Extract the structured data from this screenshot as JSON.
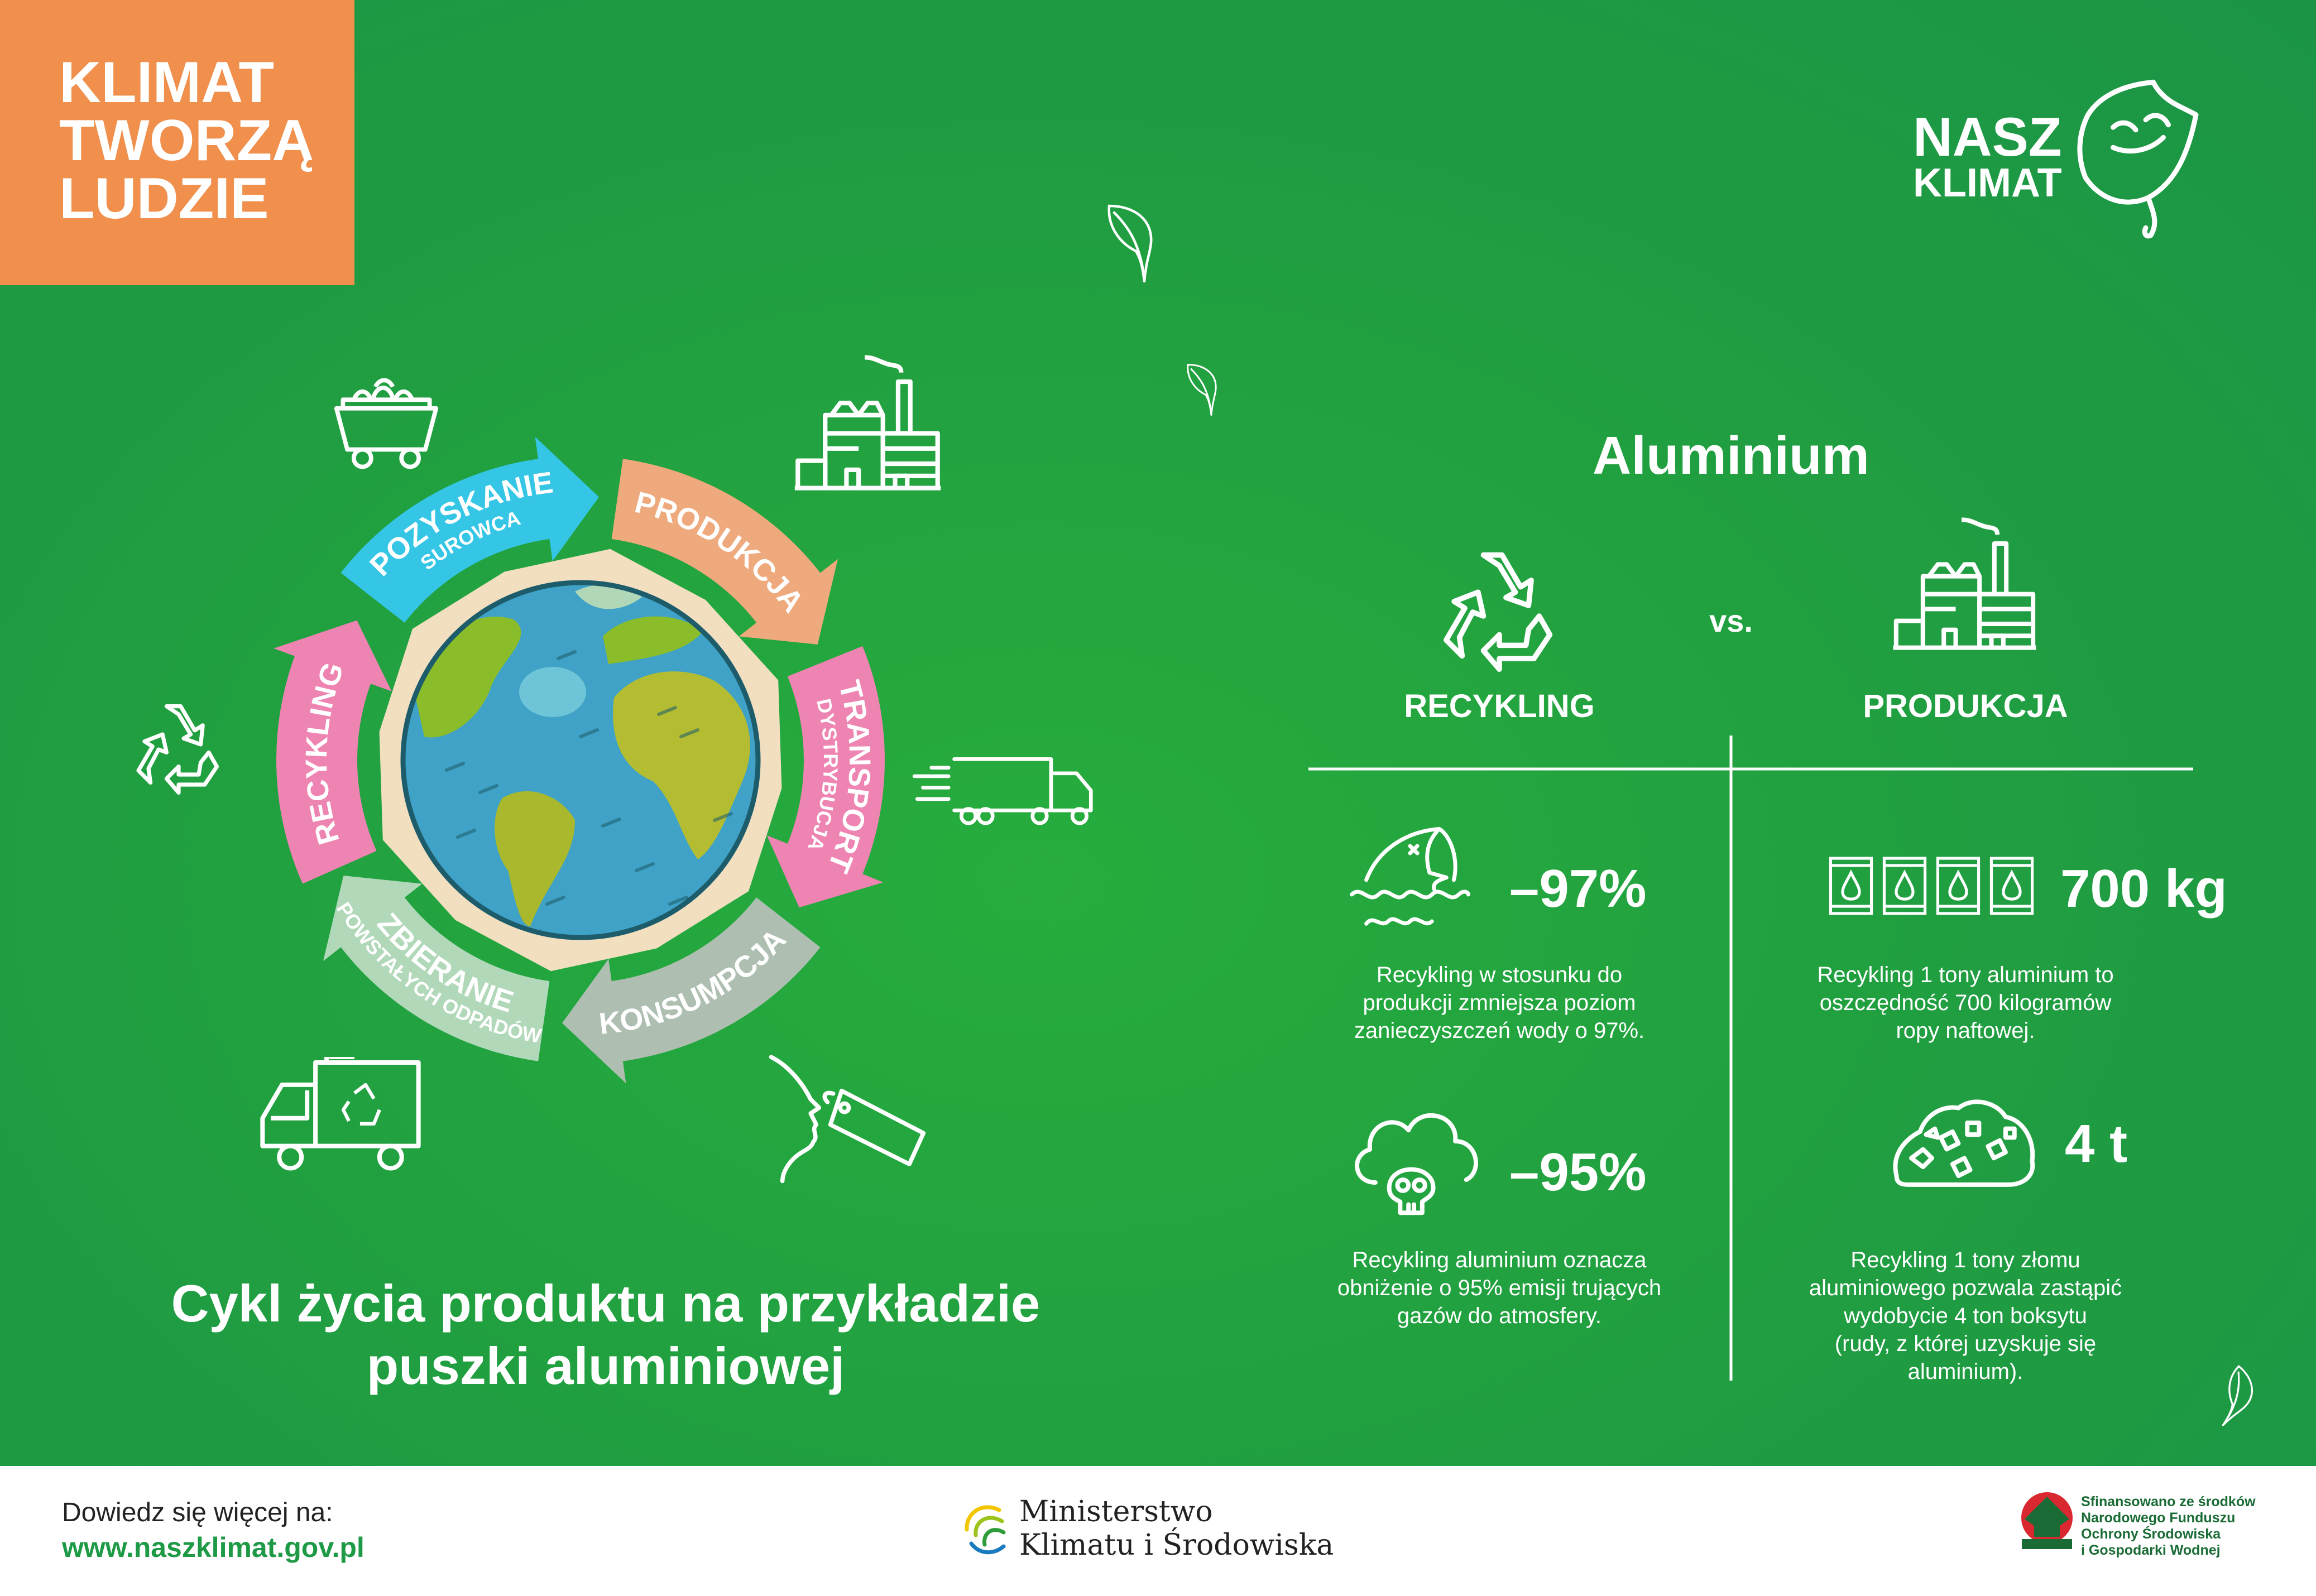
{
  "brand": {
    "lines": [
      "KLIMAT",
      "TWORZĄ",
      "LUDZIE"
    ],
    "color": "#f0904c"
  },
  "logo": {
    "line1": "NASZ",
    "line2": "KLIMAT"
  },
  "cycle": {
    "title_lines": [
      "Cykl życia produktu na przykładzie",
      "puszki aluminiowej"
    ],
    "stages": [
      {
        "label": "POZYSKANIE",
        "sub": "SUROWCA",
        "color": "#35c6e6"
      },
      {
        "label": "PRODUKCJA",
        "sub": "",
        "color": "#eeaa7d"
      },
      {
        "label": "TRANSPORT",
        "sub": "DYSTRYBUCJA",
        "color": "#ee84b1"
      },
      {
        "label": "KONSUMPCJA",
        "sub": "",
        "color": "#aebfb2"
      },
      {
        "label": "ZBIERANIE",
        "sub": "POWSTAŁYCH ODPADÓW",
        "color": "#b1d8b9"
      },
      {
        "label": "RECYKLING",
        "sub": "",
        "color": "#ee84b1"
      }
    ],
    "icons": [
      "mine-cart-icon",
      "factory-icon",
      "delivery-truck-icon",
      "consumer-face-tag-icon",
      "garbage-truck-icon",
      "recycle-icon"
    ]
  },
  "comparison": {
    "title": "Aluminium",
    "vs": "vs.",
    "left_label": "RECYKLING",
    "right_label": "PRODUKCJA",
    "stats": [
      {
        "value": "–97%",
        "icon": "fish-water-icon",
        "lines": [
          "Recykling w stosunku do",
          "produkcji zmniejsza poziom",
          "zanieczyszczeń wody o 97%."
        ]
      },
      {
        "value": "700 kg",
        "icon": "oil-barrels-icon",
        "lines": [
          "Recykling 1 tony aluminium to",
          "oszczędność 700 kilogramów",
          "ropy naftowej."
        ]
      },
      {
        "value": "–95%",
        "icon": "cloud-skull-icon",
        "lines": [
          "Recykling aluminium oznacza",
          "obniżenie o 95% emisji trujących",
          "gazów do atmosfery."
        ]
      },
      {
        "value": "4 t",
        "icon": "ore-pile-icon",
        "lines": [
          "Recykling 1 tony złomu",
          "aluminiowego pozwala zastąpić",
          "wydobycie 4 ton boksytu",
          "(rudy, z której uzyskuje się",
          "aluminium)."
        ]
      }
    ]
  },
  "footer": {
    "learn_more": "Dowiedz się więcej na:",
    "url": "www.naszklimat.gov.pl",
    "ministry": [
      "Ministerstwo",
      "Klimatu i Środowiska"
    ],
    "fund": [
      "Sfinansowano ze środków",
      "Narodowego Funduszu",
      "Ochrony Środowiska",
      "i Gospodarki Wodnej"
    ]
  },
  "colors": {
    "background": "#1e9e43",
    "url": "#1e9a46",
    "fund_text": "#1a6b36",
    "fund_red": "#d9282f"
  }
}
